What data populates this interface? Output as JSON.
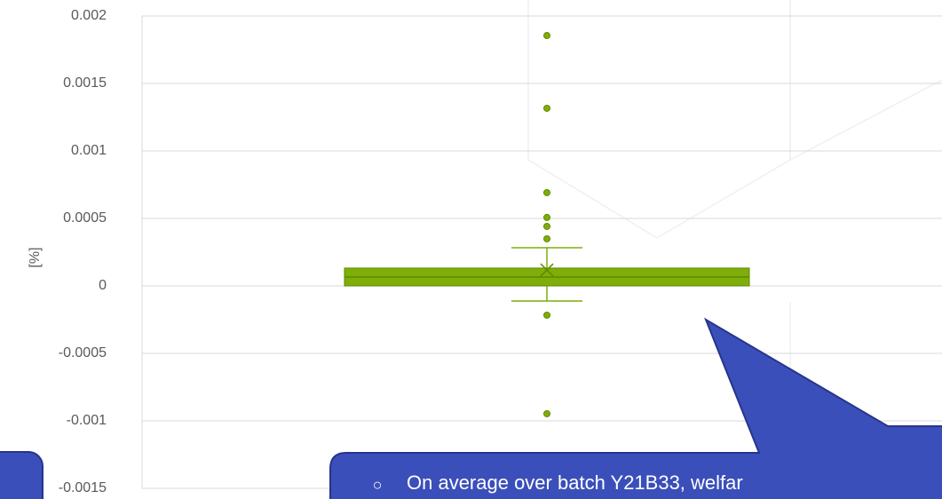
{
  "chart_data": {
    "type": "box",
    "ylabel": "[%]",
    "ylim": [
      -0.0015,
      0.002
    ],
    "yticks": [
      0.002,
      0.0015,
      0.001,
      0.0005,
      0,
      -0.0005,
      -0.001,
      -0.0015
    ],
    "grid": true,
    "color": "#7fad0a",
    "box": {
      "q1": 0,
      "median": 6.6e-05,
      "q3": 0.000132,
      "whisker_low": -0.000112,
      "whisker_high": 0.000283,
      "mean": 0.000118,
      "outliers": [
        0.001855,
        0.001316,
        0.000691,
        0.000507,
        0.000441,
        0.000349,
        -0.000217,
        -0.000947
      ]
    },
    "annotation": {
      "bullet": "○",
      "text": "On average over batch Y21B33, welfar"
    }
  }
}
